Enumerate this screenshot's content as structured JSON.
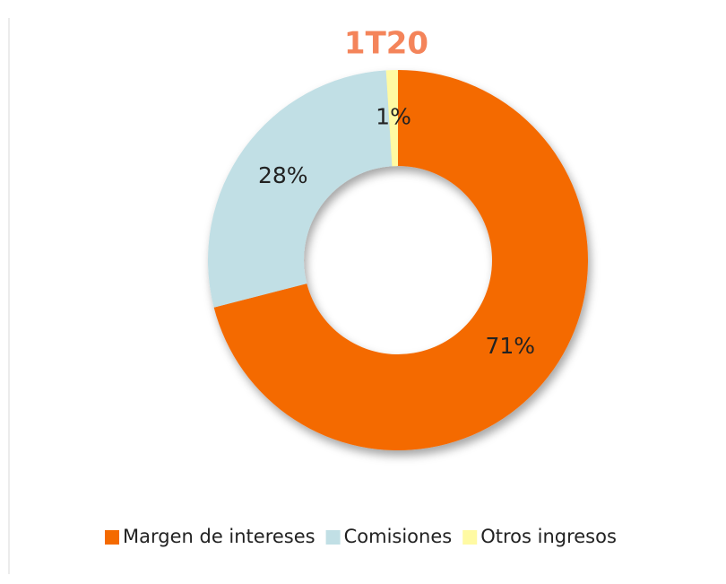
{
  "chart_data": {
    "type": "donut",
    "title": "1T20",
    "categories": [
      "Margen de intereses",
      "Comisiones",
      "Otros ingresos"
    ],
    "values": [
      71,
      28,
      1
    ],
    "value_labels": [
      "71%",
      "28%",
      "1%"
    ],
    "colors": [
      "#f46a00",
      "#c1dfe5",
      "#fffaa3"
    ],
    "title_color": "#f4845a",
    "legend": "bottom"
  }
}
